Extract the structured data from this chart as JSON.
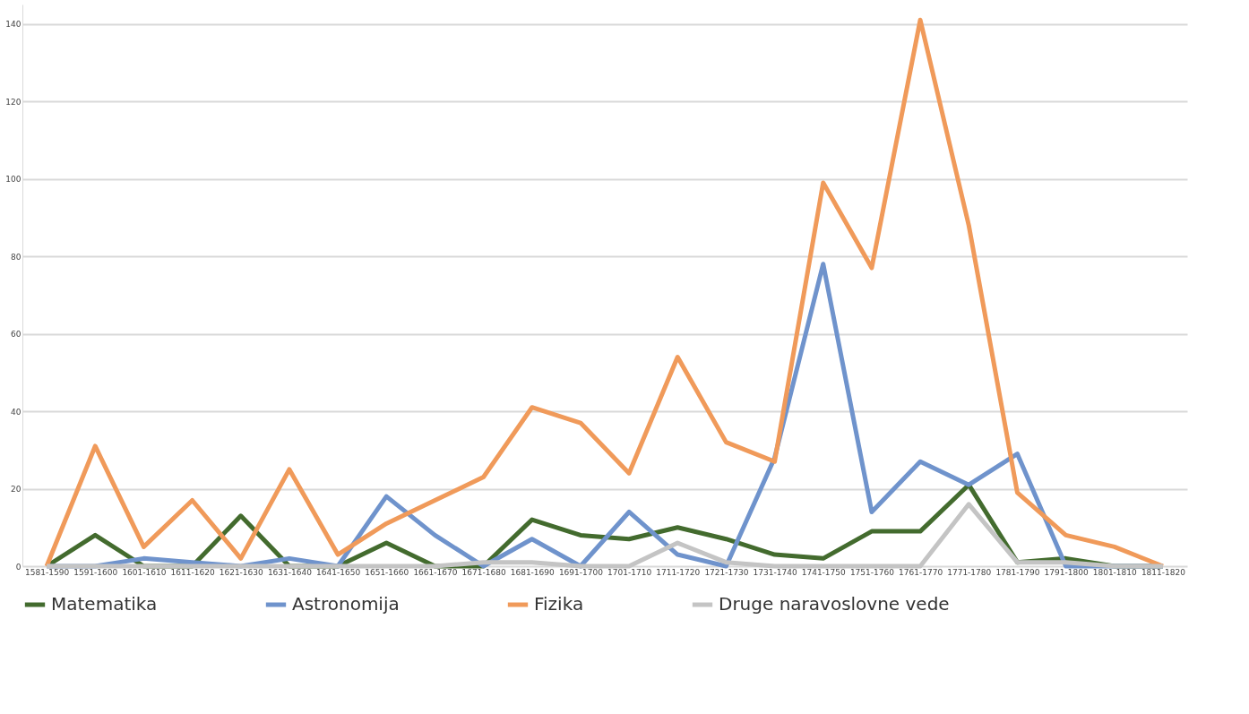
{
  "chart_data": {
    "type": "line",
    "categories": [
      "1581-1590",
      "1591-1600",
      "1601-1610",
      "1611-1620",
      "1621-1630",
      "1631-1640",
      "1641-1650",
      "1651-1660",
      "1661-1670",
      "1671-1680",
      "1681-1690",
      "1691-1700",
      "1701-1710",
      "1711-1720",
      "1721-1730",
      "1731-1740",
      "1741-1750",
      "1751-1760",
      "1761-1770",
      "1771-1780",
      "1781-1790",
      "1791-1800",
      "1801-1810",
      "1811-1820"
    ],
    "series": [
      {
        "name": "Matematika",
        "color": "#436b2e",
        "values": [
          0,
          8,
          0,
          0,
          13,
          0,
          0,
          6,
          0,
          0,
          12,
          8,
          7,
          10,
          7,
          3,
          2,
          9,
          9,
          21,
          1,
          2,
          0,
          0
        ]
      },
      {
        "name": "Astronomija",
        "color": "#6f93cc",
        "values": [
          0,
          0,
          2,
          1,
          0,
          2,
          0,
          18,
          8,
          0,
          7,
          0,
          14,
          3,
          0,
          28,
          78,
          14,
          27,
          21,
          29,
          0,
          0,
          0
        ]
      },
      {
        "name": "Fizika",
        "color": "#f09a5a",
        "values": [
          0,
          31,
          5,
          17,
          2,
          25,
          3,
          11,
          17,
          23,
          41,
          37,
          24,
          54,
          32,
          27,
          99,
          77,
          141,
          88,
          19,
          8,
          5,
          0
        ]
      },
      {
        "name": "Druge naravoslovne vede",
        "color": "#c4c4c4",
        "values": [
          0,
          0,
          0,
          0,
          0,
          0,
          0,
          0,
          0,
          1,
          1,
          0,
          0,
          6,
          1,
          0,
          0,
          0,
          0,
          16,
          1,
          1,
          0,
          0
        ]
      }
    ],
    "ylim": [
      0,
      145
    ],
    "yticks": [
      0,
      20,
      40,
      60,
      80,
      100,
      120,
      140
    ],
    "grid": "y",
    "legend": "bottom",
    "marker": "none",
    "line_style": "solid"
  }
}
